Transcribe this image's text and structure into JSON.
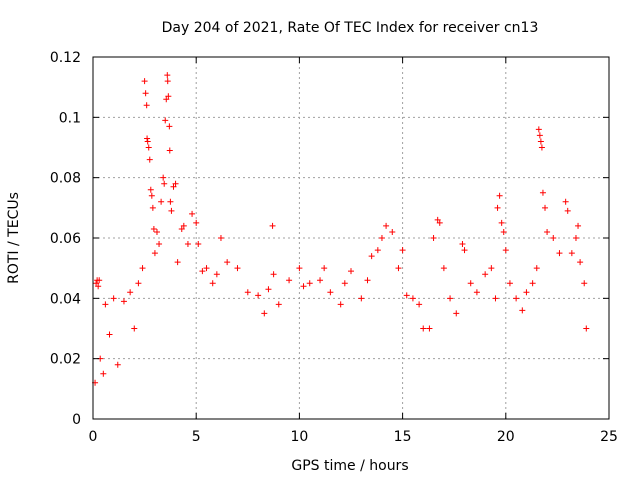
{
  "chart_data": {
    "type": "scatter",
    "title": "Day 204 of 2021, Rate Of TEC Index for receiver cn13",
    "xlabel": "GPS time / hours",
    "ylabel": "ROTI / TECUs",
    "xlim": [
      0,
      25
    ],
    "ylim": [
      0,
      0.12
    ],
    "x_ticks": [
      0,
      5,
      10,
      15,
      20,
      25
    ],
    "x_tick_labels": [
      "0",
      "5",
      "10",
      "15",
      "20",
      "25"
    ],
    "y_ticks": [
      0,
      0.02,
      0.04,
      0.06,
      0.08,
      0.1,
      0.12
    ],
    "y_tick_labels": [
      "0",
      "0.02",
      "0.04",
      "0.06",
      "0.08",
      "0.1",
      "0.12"
    ],
    "grid": true,
    "marker": "+",
    "color": "#ff0000",
    "series": [
      {
        "points": [
          [
            0.1,
            0.012
          ],
          [
            0.15,
            0.045
          ],
          [
            0.2,
            0.046
          ],
          [
            0.25,
            0.044
          ],
          [
            0.3,
            0.046
          ],
          [
            0.35,
            0.02
          ],
          [
            0.5,
            0.015
          ],
          [
            0.6,
            0.038
          ],
          [
            0.8,
            0.028
          ],
          [
            1.0,
            0.04
          ],
          [
            1.2,
            0.018
          ],
          [
            1.5,
            0.039
          ],
          [
            1.8,
            0.042
          ],
          [
            2.0,
            0.03
          ],
          [
            2.2,
            0.045
          ],
          [
            2.4,
            0.05
          ],
          [
            2.5,
            0.112
          ],
          [
            2.55,
            0.108
          ],
          [
            2.6,
            0.104
          ],
          [
            2.62,
            0.093
          ],
          [
            2.65,
            0.092
          ],
          [
            2.7,
            0.09
          ],
          [
            2.75,
            0.086
          ],
          [
            2.8,
            0.076
          ],
          [
            2.85,
            0.074
          ],
          [
            2.9,
            0.07
          ],
          [
            2.95,
            0.063
          ],
          [
            3.0,
            0.055
          ],
          [
            3.1,
            0.062
          ],
          [
            3.2,
            0.058
          ],
          [
            3.3,
            0.072
          ],
          [
            3.4,
            0.08
          ],
          [
            3.45,
            0.078
          ],
          [
            3.5,
            0.099
          ],
          [
            3.55,
            0.106
          ],
          [
            3.6,
            0.114
          ],
          [
            3.62,
            0.112
          ],
          [
            3.65,
            0.107
          ],
          [
            3.7,
            0.097
          ],
          [
            3.72,
            0.089
          ],
          [
            3.75,
            0.072
          ],
          [
            3.8,
            0.069
          ],
          [
            3.9,
            0.077
          ],
          [
            4.0,
            0.078
          ],
          [
            4.1,
            0.052
          ],
          [
            4.3,
            0.063
          ],
          [
            4.4,
            0.064
          ],
          [
            4.6,
            0.058
          ],
          [
            4.8,
            0.068
          ],
          [
            5.0,
            0.065
          ],
          [
            5.1,
            0.058
          ],
          [
            5.3,
            0.049
          ],
          [
            5.5,
            0.05
          ],
          [
            5.8,
            0.045
          ],
          [
            6.0,
            0.048
          ],
          [
            6.2,
            0.06
          ],
          [
            6.5,
            0.052
          ],
          [
            7.0,
            0.05
          ],
          [
            7.5,
            0.042
          ],
          [
            8.0,
            0.041
          ],
          [
            8.3,
            0.035
          ],
          [
            8.5,
            0.043
          ],
          [
            8.7,
            0.064
          ],
          [
            8.75,
            0.048
          ],
          [
            9.0,
            0.038
          ],
          [
            9.5,
            0.046
          ],
          [
            10.0,
            0.05
          ],
          [
            10.2,
            0.044
          ],
          [
            10.5,
            0.045
          ],
          [
            11.0,
            0.046
          ],
          [
            11.2,
            0.05
          ],
          [
            11.5,
            0.042
          ],
          [
            12.0,
            0.038
          ],
          [
            12.2,
            0.045
          ],
          [
            12.5,
            0.049
          ],
          [
            13.0,
            0.04
          ],
          [
            13.3,
            0.046
          ],
          [
            13.5,
            0.054
          ],
          [
            13.8,
            0.056
          ],
          [
            14.0,
            0.06
          ],
          [
            14.2,
            0.064
          ],
          [
            14.5,
            0.062
          ],
          [
            14.8,
            0.05
          ],
          [
            15.0,
            0.056
          ],
          [
            15.2,
            0.041
          ],
          [
            15.5,
            0.04
          ],
          [
            15.8,
            0.038
          ],
          [
            16.0,
            0.03
          ],
          [
            16.3,
            0.03
          ],
          [
            16.5,
            0.06
          ],
          [
            16.7,
            0.066
          ],
          [
            16.8,
            0.065
          ],
          [
            17.0,
            0.05
          ],
          [
            17.3,
            0.04
          ],
          [
            17.6,
            0.035
          ],
          [
            17.9,
            0.058
          ],
          [
            18.0,
            0.056
          ],
          [
            18.3,
            0.045
          ],
          [
            18.6,
            0.042
          ],
          [
            19.0,
            0.048
          ],
          [
            19.3,
            0.05
          ],
          [
            19.5,
            0.04
          ],
          [
            19.6,
            0.07
          ],
          [
            19.7,
            0.074
          ],
          [
            19.8,
            0.065
          ],
          [
            19.9,
            0.062
          ],
          [
            20.0,
            0.056
          ],
          [
            20.2,
            0.045
          ],
          [
            20.5,
            0.04
          ],
          [
            20.8,
            0.036
          ],
          [
            21.0,
            0.042
          ],
          [
            21.3,
            0.045
          ],
          [
            21.5,
            0.05
          ],
          [
            21.6,
            0.096
          ],
          [
            21.65,
            0.094
          ],
          [
            21.7,
            0.092
          ],
          [
            21.75,
            0.09
          ],
          [
            21.8,
            0.075
          ],
          [
            21.9,
            0.07
          ],
          [
            22.0,
            0.062
          ],
          [
            22.3,
            0.06
          ],
          [
            22.6,
            0.055
          ],
          [
            22.9,
            0.072
          ],
          [
            23.0,
            0.069
          ],
          [
            23.2,
            0.055
          ],
          [
            23.4,
            0.06
          ],
          [
            23.5,
            0.064
          ],
          [
            23.6,
            0.052
          ],
          [
            23.8,
            0.045
          ],
          [
            23.9,
            0.03
          ]
        ]
      }
    ]
  }
}
